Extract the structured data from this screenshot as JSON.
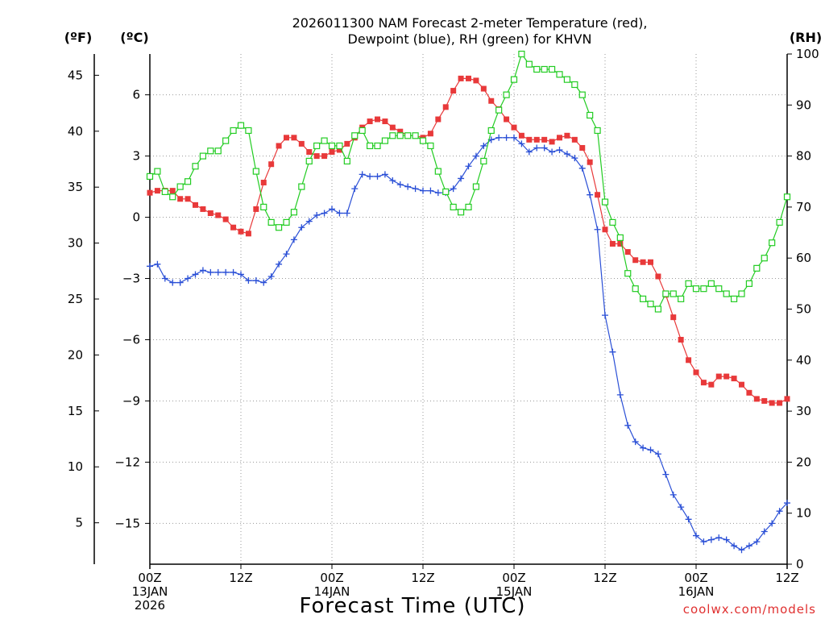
{
  "chart_data": {
    "type": "line",
    "title_line1": "2026011300 NAM Forecast 2-meter Temperature (red),",
    "title_line2": "Dewpoint (blue), RH (green) for KHVN",
    "left_outer_axis": {
      "label": "(ºF)",
      "ylim": [
        1.3,
        46.9
      ],
      "ticks": [
        5,
        10,
        15,
        20,
        25,
        30,
        35,
        40,
        45
      ]
    },
    "left_inner_axis": {
      "label": "(ºC)",
      "ylim": [
        -17.0,
        8.0
      ],
      "ticks": [
        -15,
        -12,
        -9,
        -6,
        -3,
        0,
        3,
        6
      ]
    },
    "right_axis": {
      "label": "(RH)",
      "ylim": [
        0,
        100
      ],
      "ticks": [
        0,
        10,
        20,
        30,
        40,
        50,
        60,
        70,
        80,
        90,
        100
      ]
    },
    "x_axis": {
      "label": "Forecast Time (UTC)",
      "range_hours": [
        0,
        84
      ],
      "ticks": [
        {
          "hour": 0,
          "label": "00Z",
          "date": "13JAN",
          "year": "2026"
        },
        {
          "hour": 12,
          "label": "12Z",
          "date": "",
          "year": ""
        },
        {
          "hour": 24,
          "label": "00Z",
          "date": "14JAN",
          "year": ""
        },
        {
          "hour": 36,
          "label": "12Z",
          "date": "",
          "year": ""
        },
        {
          "hour": 48,
          "label": "00Z",
          "date": "15JAN",
          "year": ""
        },
        {
          "hour": 60,
          "label": "12Z",
          "date": "",
          "year": ""
        },
        {
          "hour": 72,
          "label": "00Z",
          "date": "16JAN",
          "year": ""
        },
        {
          "hour": 84,
          "label": "12Z",
          "date": "",
          "year": ""
        }
      ]
    },
    "grid": true,
    "series": [
      {
        "name": "2-meter Temperature",
        "axis": "C",
        "color": "#e8393a",
        "marker": "filled-square",
        "points": [
          [
            0,
            1.2
          ],
          [
            1,
            1.3
          ],
          [
            2,
            1.3
          ],
          [
            3,
            1.3
          ],
          [
            4,
            0.9
          ],
          [
            5,
            0.9
          ],
          [
            6,
            0.6
          ],
          [
            7,
            0.4
          ],
          [
            8,
            0.2
          ],
          [
            9,
            0.1
          ],
          [
            10,
            -0.1
          ],
          [
            11,
            -0.5
          ],
          [
            12,
            -0.7
          ],
          [
            13,
            -0.8
          ],
          [
            14,
            0.4
          ],
          [
            15,
            1.7
          ],
          [
            16,
            2.6
          ],
          [
            17,
            3.5
          ],
          [
            18,
            3.9
          ],
          [
            19,
            3.9
          ],
          [
            20,
            3.6
          ],
          [
            21,
            3.2
          ],
          [
            22,
            3.0
          ],
          [
            23,
            3.0
          ],
          [
            24,
            3.2
          ],
          [
            25,
            3.3
          ],
          [
            26,
            3.6
          ],
          [
            27,
            3.9
          ],
          [
            28,
            4.4
          ],
          [
            29,
            4.7
          ],
          [
            30,
            4.8
          ],
          [
            31,
            4.7
          ],
          [
            32,
            4.4
          ],
          [
            33,
            4.2
          ],
          [
            34,
            4.0
          ],
          [
            35,
            4.0
          ],
          [
            36,
            3.9
          ],
          [
            37,
            4.1
          ],
          [
            38,
            4.8
          ],
          [
            39,
            5.4
          ],
          [
            40,
            6.2
          ],
          [
            41,
            6.8
          ],
          [
            42,
            6.8
          ],
          [
            43,
            6.7
          ],
          [
            44,
            6.3
          ],
          [
            45,
            5.7
          ],
          [
            46,
            5.3
          ],
          [
            47,
            4.8
          ],
          [
            48,
            4.4
          ],
          [
            49,
            4.0
          ],
          [
            50,
            3.8
          ],
          [
            51,
            3.8
          ],
          [
            52,
            3.8
          ],
          [
            53,
            3.7
          ],
          [
            54,
            3.9
          ],
          [
            55,
            4.0
          ],
          [
            56,
            3.8
          ],
          [
            57,
            3.4
          ],
          [
            58,
            2.7
          ],
          [
            59,
            1.1
          ],
          [
            60,
            -0.6
          ],
          [
            61,
            -1.3
          ],
          [
            62,
            -1.3
          ],
          [
            63,
            -1.7
          ],
          [
            64,
            -2.1
          ],
          [
            65,
            -2.2
          ],
          [
            66,
            -2.2
          ],
          [
            67,
            -2.9
          ],
          [
            68,
            -3.8
          ],
          [
            69,
            -4.9
          ],
          [
            70,
            -6.0
          ],
          [
            71,
            -7.0
          ],
          [
            72,
            -7.6
          ],
          [
            73,
            -8.1
          ],
          [
            74,
            -8.2
          ],
          [
            75,
            -7.8
          ],
          [
            76,
            -7.8
          ],
          [
            77,
            -7.9
          ],
          [
            78,
            -8.2
          ],
          [
            79,
            -8.6
          ],
          [
            80,
            -8.9
          ],
          [
            81,
            -9.0
          ],
          [
            82,
            -9.1
          ],
          [
            83,
            -9.1
          ],
          [
            84,
            -8.9
          ]
        ]
      },
      {
        "name": "Dewpoint",
        "axis": "C",
        "color": "#2a4fd6",
        "marker": "plus",
        "points": [
          [
            0,
            -2.4
          ],
          [
            1,
            -2.3
          ],
          [
            2,
            -3.0
          ],
          [
            3,
            -3.2
          ],
          [
            4,
            -3.2
          ],
          [
            5,
            -3.0
          ],
          [
            6,
            -2.8
          ],
          [
            7,
            -2.6
          ],
          [
            8,
            -2.7
          ],
          [
            9,
            -2.7
          ],
          [
            10,
            -2.7
          ],
          [
            11,
            -2.7
          ],
          [
            12,
            -2.8
          ],
          [
            13,
            -3.1
          ],
          [
            14,
            -3.1
          ],
          [
            15,
            -3.2
          ],
          [
            16,
            -2.9
          ],
          [
            17,
            -2.3
          ],
          [
            18,
            -1.8
          ],
          [
            19,
            -1.1
          ],
          [
            20,
            -0.5
          ],
          [
            21,
            -0.2
          ],
          [
            22,
            0.1
          ],
          [
            23,
            0.2
          ],
          [
            24,
            0.4
          ],
          [
            25,
            0.2
          ],
          [
            26,
            0.2
          ],
          [
            27,
            1.4
          ],
          [
            28,
            2.1
          ],
          [
            29,
            2.0
          ],
          [
            30,
            2.0
          ],
          [
            31,
            2.1
          ],
          [
            32,
            1.8
          ],
          [
            33,
            1.6
          ],
          [
            34,
            1.5
          ],
          [
            35,
            1.4
          ],
          [
            36,
            1.3
          ],
          [
            37,
            1.3
          ],
          [
            38,
            1.2
          ],
          [
            39,
            1.2
          ],
          [
            40,
            1.4
          ],
          [
            41,
            1.9
          ],
          [
            42,
            2.5
          ],
          [
            43,
            3.0
          ],
          [
            44,
            3.5
          ],
          [
            45,
            3.8
          ],
          [
            46,
            3.9
          ],
          [
            47,
            3.9
          ],
          [
            48,
            3.9
          ],
          [
            49,
            3.6
          ],
          [
            50,
            3.2
          ],
          [
            51,
            3.4
          ],
          [
            52,
            3.4
          ],
          [
            53,
            3.2
          ],
          [
            54,
            3.3
          ],
          [
            55,
            3.1
          ],
          [
            56,
            2.9
          ],
          [
            57,
            2.4
          ],
          [
            58,
            1.1
          ],
          [
            59,
            -0.6
          ],
          [
            60,
            -4.8
          ],
          [
            61,
            -6.6
          ],
          [
            62,
            -8.7
          ],
          [
            63,
            -10.2
          ],
          [
            64,
            -11.0
          ],
          [
            65,
            -11.3
          ],
          [
            66,
            -11.4
          ],
          [
            67,
            -11.6
          ],
          [
            68,
            -12.6
          ],
          [
            69,
            -13.6
          ],
          [
            70,
            -14.2
          ],
          [
            71,
            -14.8
          ],
          [
            72,
            -15.6
          ],
          [
            73,
            -15.9
          ],
          [
            74,
            -15.8
          ],
          [
            75,
            -15.7
          ],
          [
            76,
            -15.8
          ],
          [
            77,
            -16.1
          ],
          [
            78,
            -16.3
          ],
          [
            79,
            -16.1
          ],
          [
            80,
            -15.9
          ],
          [
            81,
            -15.4
          ],
          [
            82,
            -15.0
          ],
          [
            83,
            -14.4
          ],
          [
            84,
            -14.0
          ]
        ]
      },
      {
        "name": "RH",
        "axis": "RH",
        "color": "#22cc22",
        "marker": "open-square",
        "points": [
          [
            0,
            76
          ],
          [
            1,
            77
          ],
          [
            2,
            73
          ],
          [
            3,
            72
          ],
          [
            4,
            74
          ],
          [
            5,
            75
          ],
          [
            6,
            78
          ],
          [
            7,
            80
          ],
          [
            8,
            81
          ],
          [
            9,
            81
          ],
          [
            10,
            83
          ],
          [
            11,
            85
          ],
          [
            12,
            86
          ],
          [
            13,
            85
          ],
          [
            14,
            77
          ],
          [
            15,
            70
          ],
          [
            16,
            67
          ],
          [
            17,
            66
          ],
          [
            18,
            67
          ],
          [
            19,
            69
          ],
          [
            20,
            74
          ],
          [
            21,
            79
          ],
          [
            22,
            82
          ],
          [
            23,
            83
          ],
          [
            24,
            82
          ],
          [
            25,
            82
          ],
          [
            26,
            79
          ],
          [
            27,
            84
          ],
          [
            28,
            85
          ],
          [
            29,
            82
          ],
          [
            30,
            82
          ],
          [
            31,
            83
          ],
          [
            32,
            84
          ],
          [
            33,
            84
          ],
          [
            34,
            84
          ],
          [
            35,
            84
          ],
          [
            36,
            83
          ],
          [
            37,
            82
          ],
          [
            38,
            77
          ],
          [
            39,
            73
          ],
          [
            40,
            70
          ],
          [
            41,
            69
          ],
          [
            42,
            70
          ],
          [
            43,
            74
          ],
          [
            44,
            79
          ],
          [
            45,
            85
          ],
          [
            46,
            89
          ],
          [
            47,
            92
          ],
          [
            48,
            95
          ],
          [
            49,
            100
          ],
          [
            50,
            98
          ],
          [
            51,
            97
          ],
          [
            52,
            97
          ],
          [
            53,
            97
          ],
          [
            54,
            96
          ],
          [
            55,
            95
          ],
          [
            56,
            94
          ],
          [
            57,
            92
          ],
          [
            58,
            88
          ],
          [
            59,
            85
          ],
          [
            60,
            71
          ],
          [
            61,
            67
          ],
          [
            62,
            64
          ],
          [
            63,
            57
          ],
          [
            64,
            54
          ],
          [
            65,
            52
          ],
          [
            66,
            51
          ],
          [
            67,
            50
          ],
          [
            68,
            53
          ],
          [
            69,
            53
          ],
          [
            70,
            52
          ],
          [
            71,
            55
          ],
          [
            72,
            54
          ],
          [
            73,
            54
          ],
          [
            74,
            55
          ],
          [
            75,
            54
          ],
          [
            76,
            53
          ],
          [
            77,
            52
          ],
          [
            78,
            53
          ],
          [
            79,
            55
          ],
          [
            80,
            58
          ],
          [
            81,
            60
          ],
          [
            82,
            63
          ],
          [
            83,
            67
          ],
          [
            84,
            72
          ]
        ]
      }
    ]
  },
  "credit": "coolwx.com/models"
}
